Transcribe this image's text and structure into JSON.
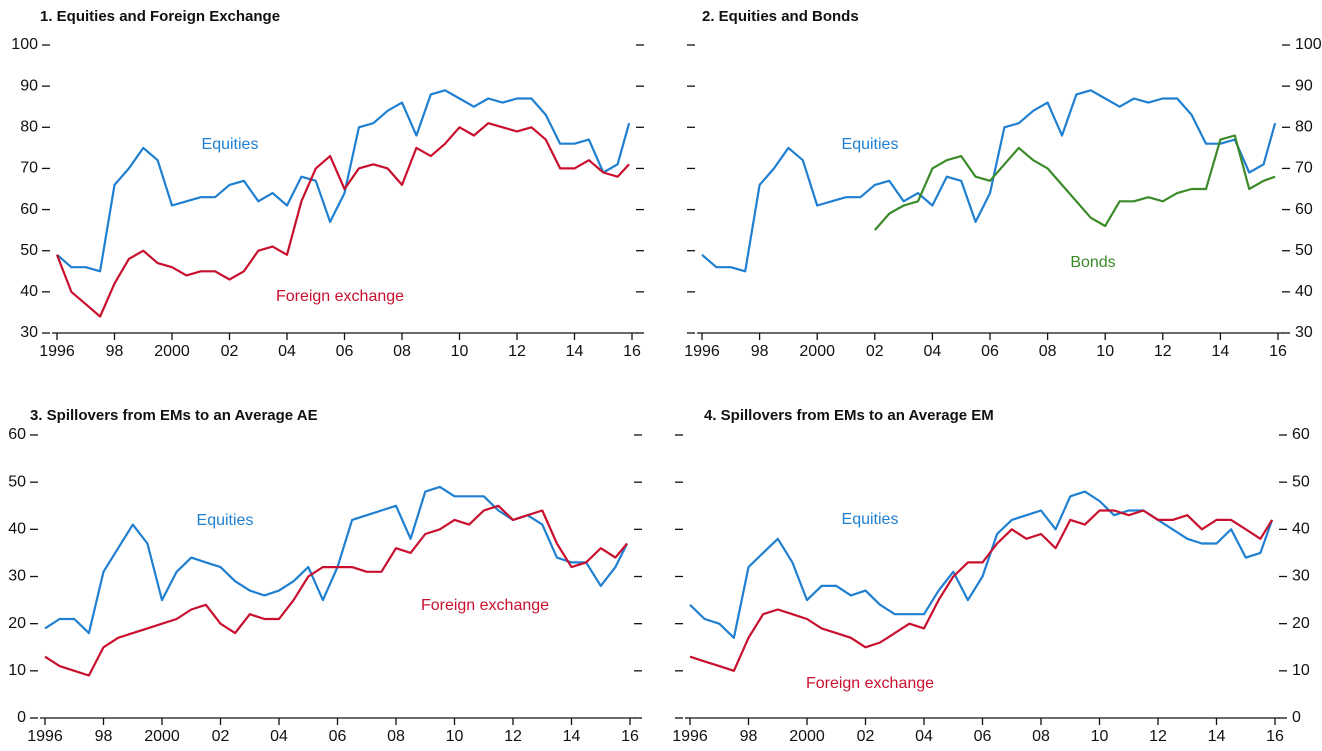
{
  "chart_data": [
    {
      "type": "line",
      "title": "1. Equities and Foreign Exchange",
      "x": [
        1996,
        1996.5,
        1997,
        1997.5,
        1998,
        1998.5,
        1999,
        1999.5,
        2000,
        2000.5,
        2001,
        2001.5,
        2002,
        2002.5,
        2003,
        2003.5,
        2004,
        2004.5,
        2005,
        2005.5,
        2006,
        2006.5,
        2007,
        2007.5,
        2008,
        2008.5,
        2009,
        2009.5,
        2010,
        2010.5,
        2011,
        2011.5,
        2012,
        2012.5,
        2013,
        2013.5,
        2014,
        2014.5,
        2015,
        2015.5,
        2015.9
      ],
      "series": [
        {
          "name": "Equities",
          "color": "#1f7fd0",
          "values": [
            49,
            46,
            46,
            45,
            66,
            70,
            75,
            72,
            61,
            62,
            63,
            63,
            66,
            67,
            62,
            64,
            61,
            68,
            67,
            57,
            64,
            80,
            81,
            84,
            86,
            78,
            88,
            89,
            87,
            85,
            87,
            86,
            87,
            87,
            83,
            76,
            76,
            77,
            69,
            71,
            81
          ]
        },
        {
          "name": "Foreign exchange",
          "color": "#c8102e",
          "values": [
            49,
            40,
            37,
            34,
            42,
            48,
            50,
            47,
            46,
            44,
            45,
            45,
            43,
            45,
            50,
            51,
            49,
            62,
            70,
            73,
            65,
            70,
            71,
            70,
            66,
            75,
            73,
            76,
            80,
            78,
            81,
            80,
            79,
            80,
            77,
            70,
            70,
            72,
            69,
            68,
            71
          ]
        }
      ],
      "xlim": [
        1996,
        2016
      ],
      "xticks": [
        1996,
        {
          "value": 1998,
          "label": "98"
        },
        2000,
        {
          "value": 2002,
          "label": "02"
        },
        {
          "value": 2004,
          "label": "04"
        },
        {
          "value": 2006,
          "label": "06"
        },
        {
          "value": 2008,
          "label": "08"
        },
        {
          "value": 2010,
          "label": "10"
        },
        {
          "value": 2012,
          "label": "12"
        },
        {
          "value": 2014,
          "label": "14"
        },
        {
          "value": 2016,
          "label": "16"
        }
      ],
      "ylim": [
        30,
        100
      ],
      "yticks": [
        30,
        40,
        50,
        60,
        70,
        80,
        90,
        100
      ]
    },
    {
      "type": "line",
      "title": "2. Equities and Bonds",
      "x": [
        1996,
        1996.5,
        1997,
        1997.5,
        1998,
        1998.5,
        1999,
        1999.5,
        2000,
        2000.5,
        2001,
        2001.5,
        2002,
        2002.5,
        2003,
        2003.5,
        2004,
        2004.5,
        2005,
        2005.5,
        2006,
        2006.5,
        2007,
        2007.5,
        2008,
        2008.5,
        2009,
        2009.5,
        2010,
        2010.5,
        2011,
        2011.5,
        2012,
        2012.5,
        2013,
        2013.5,
        2014,
        2014.5,
        2015,
        2015.5,
        2015.9
      ],
      "series": [
        {
          "name": "Equities",
          "color": "#1f7fd0",
          "values": [
            49,
            46,
            46,
            45,
            66,
            70,
            75,
            72,
            61,
            62,
            63,
            63,
            66,
            67,
            62,
            64,
            61,
            68,
            67,
            57,
            64,
            80,
            81,
            84,
            86,
            78,
            88,
            89,
            87,
            85,
            87,
            86,
            87,
            87,
            83,
            76,
            76,
            77,
            69,
            71,
            81
          ]
        },
        {
          "name": "Bonds",
          "color": "#3a8a2a",
          "values": [
            null,
            null,
            null,
            null,
            null,
            null,
            null,
            null,
            null,
            null,
            null,
            null,
            55,
            59,
            61,
            62,
            70,
            72,
            73,
            68,
            67,
            71,
            75,
            72,
            70,
            66,
            62,
            58,
            56,
            62,
            62,
            63,
            62,
            64,
            65,
            65,
            77,
            78,
            65,
            67,
            68
          ]
        }
      ],
      "xlim": [
        1996,
        2016
      ],
      "xticks": [
        1996,
        {
          "value": 1998,
          "label": "98"
        },
        2000,
        {
          "value": 2002,
          "label": "02"
        },
        {
          "value": 2004,
          "label": "04"
        },
        {
          "value": 2006,
          "label": "06"
        },
        {
          "value": 2008,
          "label": "08"
        },
        {
          "value": 2010,
          "label": "10"
        },
        {
          "value": 2012,
          "label": "12"
        },
        {
          "value": 2014,
          "label": "14"
        },
        {
          "value": 2016,
          "label": "16"
        }
      ],
      "ylim": [
        30,
        100
      ],
      "yticks": [
        30,
        40,
        50,
        60,
        70,
        80,
        90,
        100
      ]
    },
    {
      "type": "line",
      "title": "3. Spillovers from EMs to an Average AE",
      "x": [
        1996,
        1996.5,
        1997,
        1997.5,
        1998,
        1998.5,
        1999,
        1999.5,
        2000,
        2000.5,
        2001,
        2001.5,
        2002,
        2002.5,
        2003,
        2003.5,
        2004,
        2004.5,
        2005,
        2005.5,
        2006,
        2006.5,
        2007,
        2007.5,
        2008,
        2008.5,
        2009,
        2009.5,
        2010,
        2010.5,
        2011,
        2011.5,
        2012,
        2012.5,
        2013,
        2013.5,
        2014,
        2014.5,
        2015,
        2015.5,
        2015.9
      ],
      "series": [
        {
          "name": "Equities",
          "color": "#1f7fd0",
          "values": [
            19,
            21,
            21,
            18,
            31,
            36,
            41,
            37,
            25,
            31,
            34,
            33,
            32,
            29,
            27,
            26,
            27,
            29,
            32,
            25,
            32,
            42,
            43,
            44,
            45,
            38,
            48,
            49,
            47,
            47,
            47,
            44,
            42,
            43,
            41,
            34,
            33,
            33,
            28,
            32,
            37
          ]
        },
        {
          "name": "Foreign exchange",
          "color": "#c8102e",
          "values": [
            13,
            11,
            10,
            9,
            15,
            17,
            18,
            19,
            20,
            21,
            23,
            24,
            20,
            18,
            22,
            21,
            21,
            25,
            30,
            32,
            32,
            32,
            31,
            31,
            36,
            35,
            39,
            40,
            42,
            41,
            44,
            45,
            42,
            43,
            44,
            37,
            32,
            33,
            36,
            34,
            37
          ]
        }
      ],
      "xlim": [
        1996,
        2016
      ],
      "xticks": [
        1996,
        {
          "value": 1998,
          "label": "98"
        },
        2000,
        {
          "value": 2002,
          "label": "02"
        },
        {
          "value": 2004,
          "label": "04"
        },
        {
          "value": 2006,
          "label": "06"
        },
        {
          "value": 2008,
          "label": "08"
        },
        {
          "value": 2010,
          "label": "10"
        },
        {
          "value": 2012,
          "label": "12"
        },
        {
          "value": 2014,
          "label": "14"
        },
        {
          "value": 2016,
          "label": "16"
        }
      ],
      "ylim": [
        0,
        60
      ],
      "yticks": [
        0,
        10,
        20,
        30,
        40,
        50,
        60
      ]
    },
    {
      "type": "line",
      "title": "4. Spillovers from EMs to an Average EM",
      "x": [
        1996,
        1996.5,
        1997,
        1997.5,
        1998,
        1998.5,
        1999,
        1999.5,
        2000,
        2000.5,
        2001,
        2001.5,
        2002,
        2002.5,
        2003,
        2003.5,
        2004,
        2004.5,
        2005,
        2005.5,
        2006,
        2006.5,
        2007,
        2007.5,
        2008,
        2008.5,
        2009,
        2009.5,
        2010,
        2010.5,
        2011,
        2011.5,
        2012,
        2012.5,
        2013,
        2013.5,
        2014,
        2014.5,
        2015,
        2015.5,
        2015.9
      ],
      "series": [
        {
          "name": "Equities",
          "color": "#1f7fd0",
          "values": [
            24,
            21,
            20,
            17,
            32,
            35,
            38,
            33,
            25,
            28,
            28,
            26,
            27,
            24,
            22,
            22,
            22,
            27,
            31,
            25,
            30,
            39,
            42,
            43,
            44,
            40,
            47,
            48,
            46,
            43,
            44,
            44,
            42,
            40,
            38,
            37,
            37,
            40,
            34,
            35,
            42
          ]
        },
        {
          "name": "Foreign exchange",
          "color": "#c8102e",
          "values": [
            13,
            12,
            11,
            10,
            17,
            22,
            23,
            22,
            21,
            19,
            18,
            17,
            15,
            16,
            18,
            20,
            19,
            25,
            30,
            33,
            33,
            37,
            40,
            38,
            39,
            36,
            42,
            41,
            44,
            44,
            43,
            44,
            42,
            42,
            43,
            40,
            42,
            42,
            40,
            38,
            42
          ]
        }
      ],
      "xlim": [
        1996,
        2016
      ],
      "xticks": [
        1996,
        {
          "value": 1998,
          "label": "98"
        },
        2000,
        {
          "value": 2002,
          "label": "02"
        },
        {
          "value": 2004,
          "label": "04"
        },
        {
          "value": 2006,
          "label": "06"
        },
        {
          "value": 2008,
          "label": "08"
        },
        {
          "value": 2010,
          "label": "10"
        },
        {
          "value": 2012,
          "label": "12"
        },
        {
          "value": 2014,
          "label": "14"
        },
        {
          "value": 2016,
          "label": "16"
        }
      ],
      "ylim": [
        0,
        60
      ],
      "yticks": [
        0,
        10,
        20,
        30,
        40,
        50,
        60
      ]
    }
  ]
}
